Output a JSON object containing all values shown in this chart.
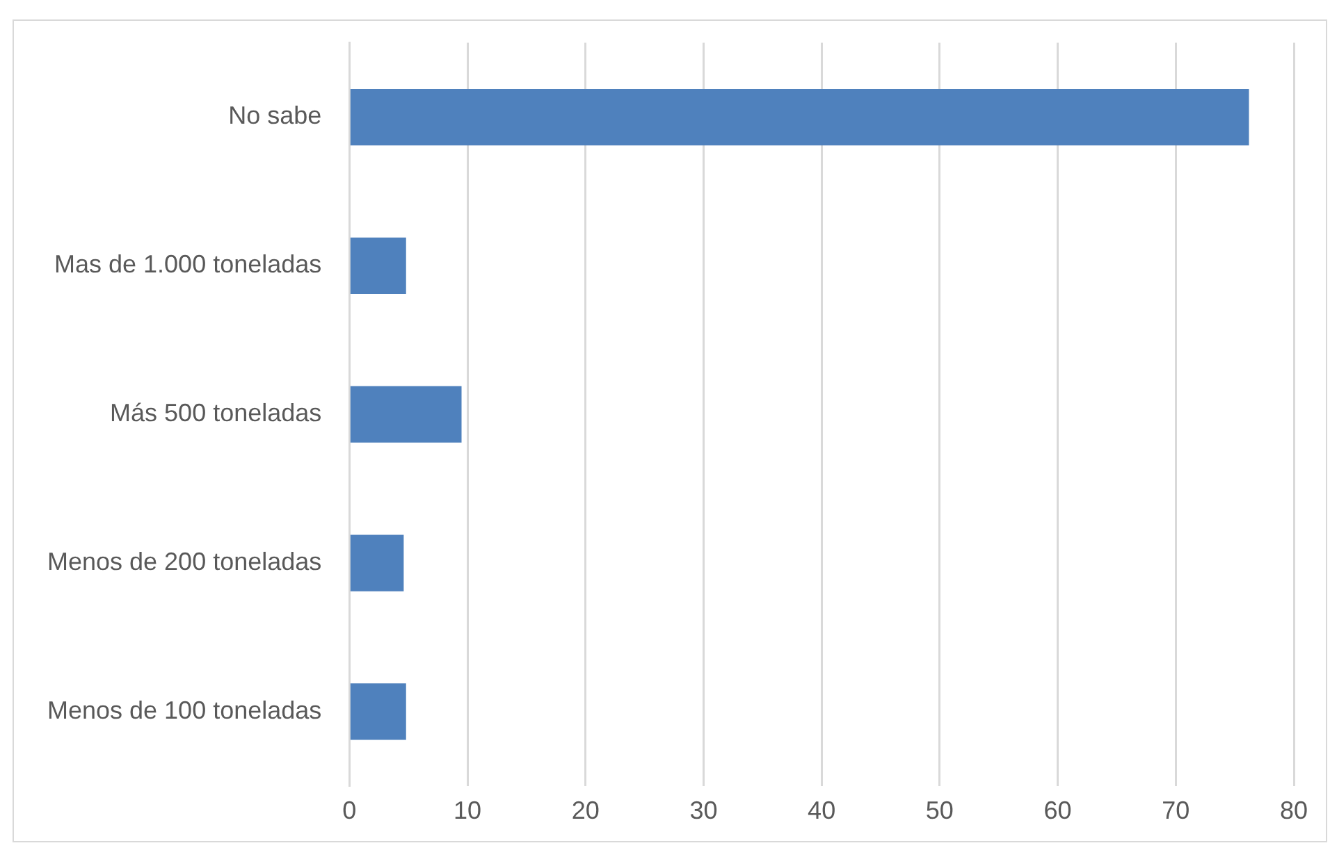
{
  "chart_data": {
    "type": "bar",
    "orientation": "horizontal",
    "categories": [
      "No sabe",
      "Mas de 1.000 toneladas",
      "Más 500 toneladas",
      "Menos de 200 toneladas",
      "Menos de 100 toneladas"
    ],
    "values": [
      76.2,
      4.8,
      9.5,
      4.6,
      4.8
    ],
    "color": "#4f81bd",
    "xlim": [
      0,
      80
    ],
    "xticks": [
      0,
      10,
      20,
      30,
      40,
      50,
      60,
      70,
      80
    ],
    "grid": "x"
  }
}
